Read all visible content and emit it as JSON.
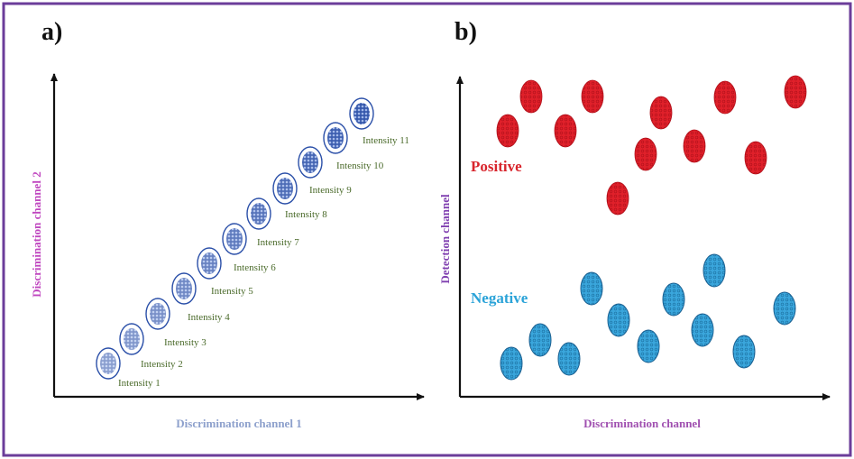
{
  "panels": [
    {
      "label": "a)",
      "x_axis_label": "Discrimination channel 1",
      "y_axis_label": "Discrimination channel 2",
      "clusters": [
        "Intensity 1",
        "Intensity 2",
        "Intensity 3",
        "Intensity 4",
        "Intensity 5",
        "Intensity 6",
        "Intensity 7",
        "Intensity 8",
        "Intensity 9",
        "Intensity 10",
        "Intensity 11"
      ]
    },
    {
      "label": "b)",
      "x_axis_label": "Discrimination channel",
      "y_axis_label": "Detection channel",
      "groups": [
        "Positive",
        "Negative"
      ]
    }
  ]
}
